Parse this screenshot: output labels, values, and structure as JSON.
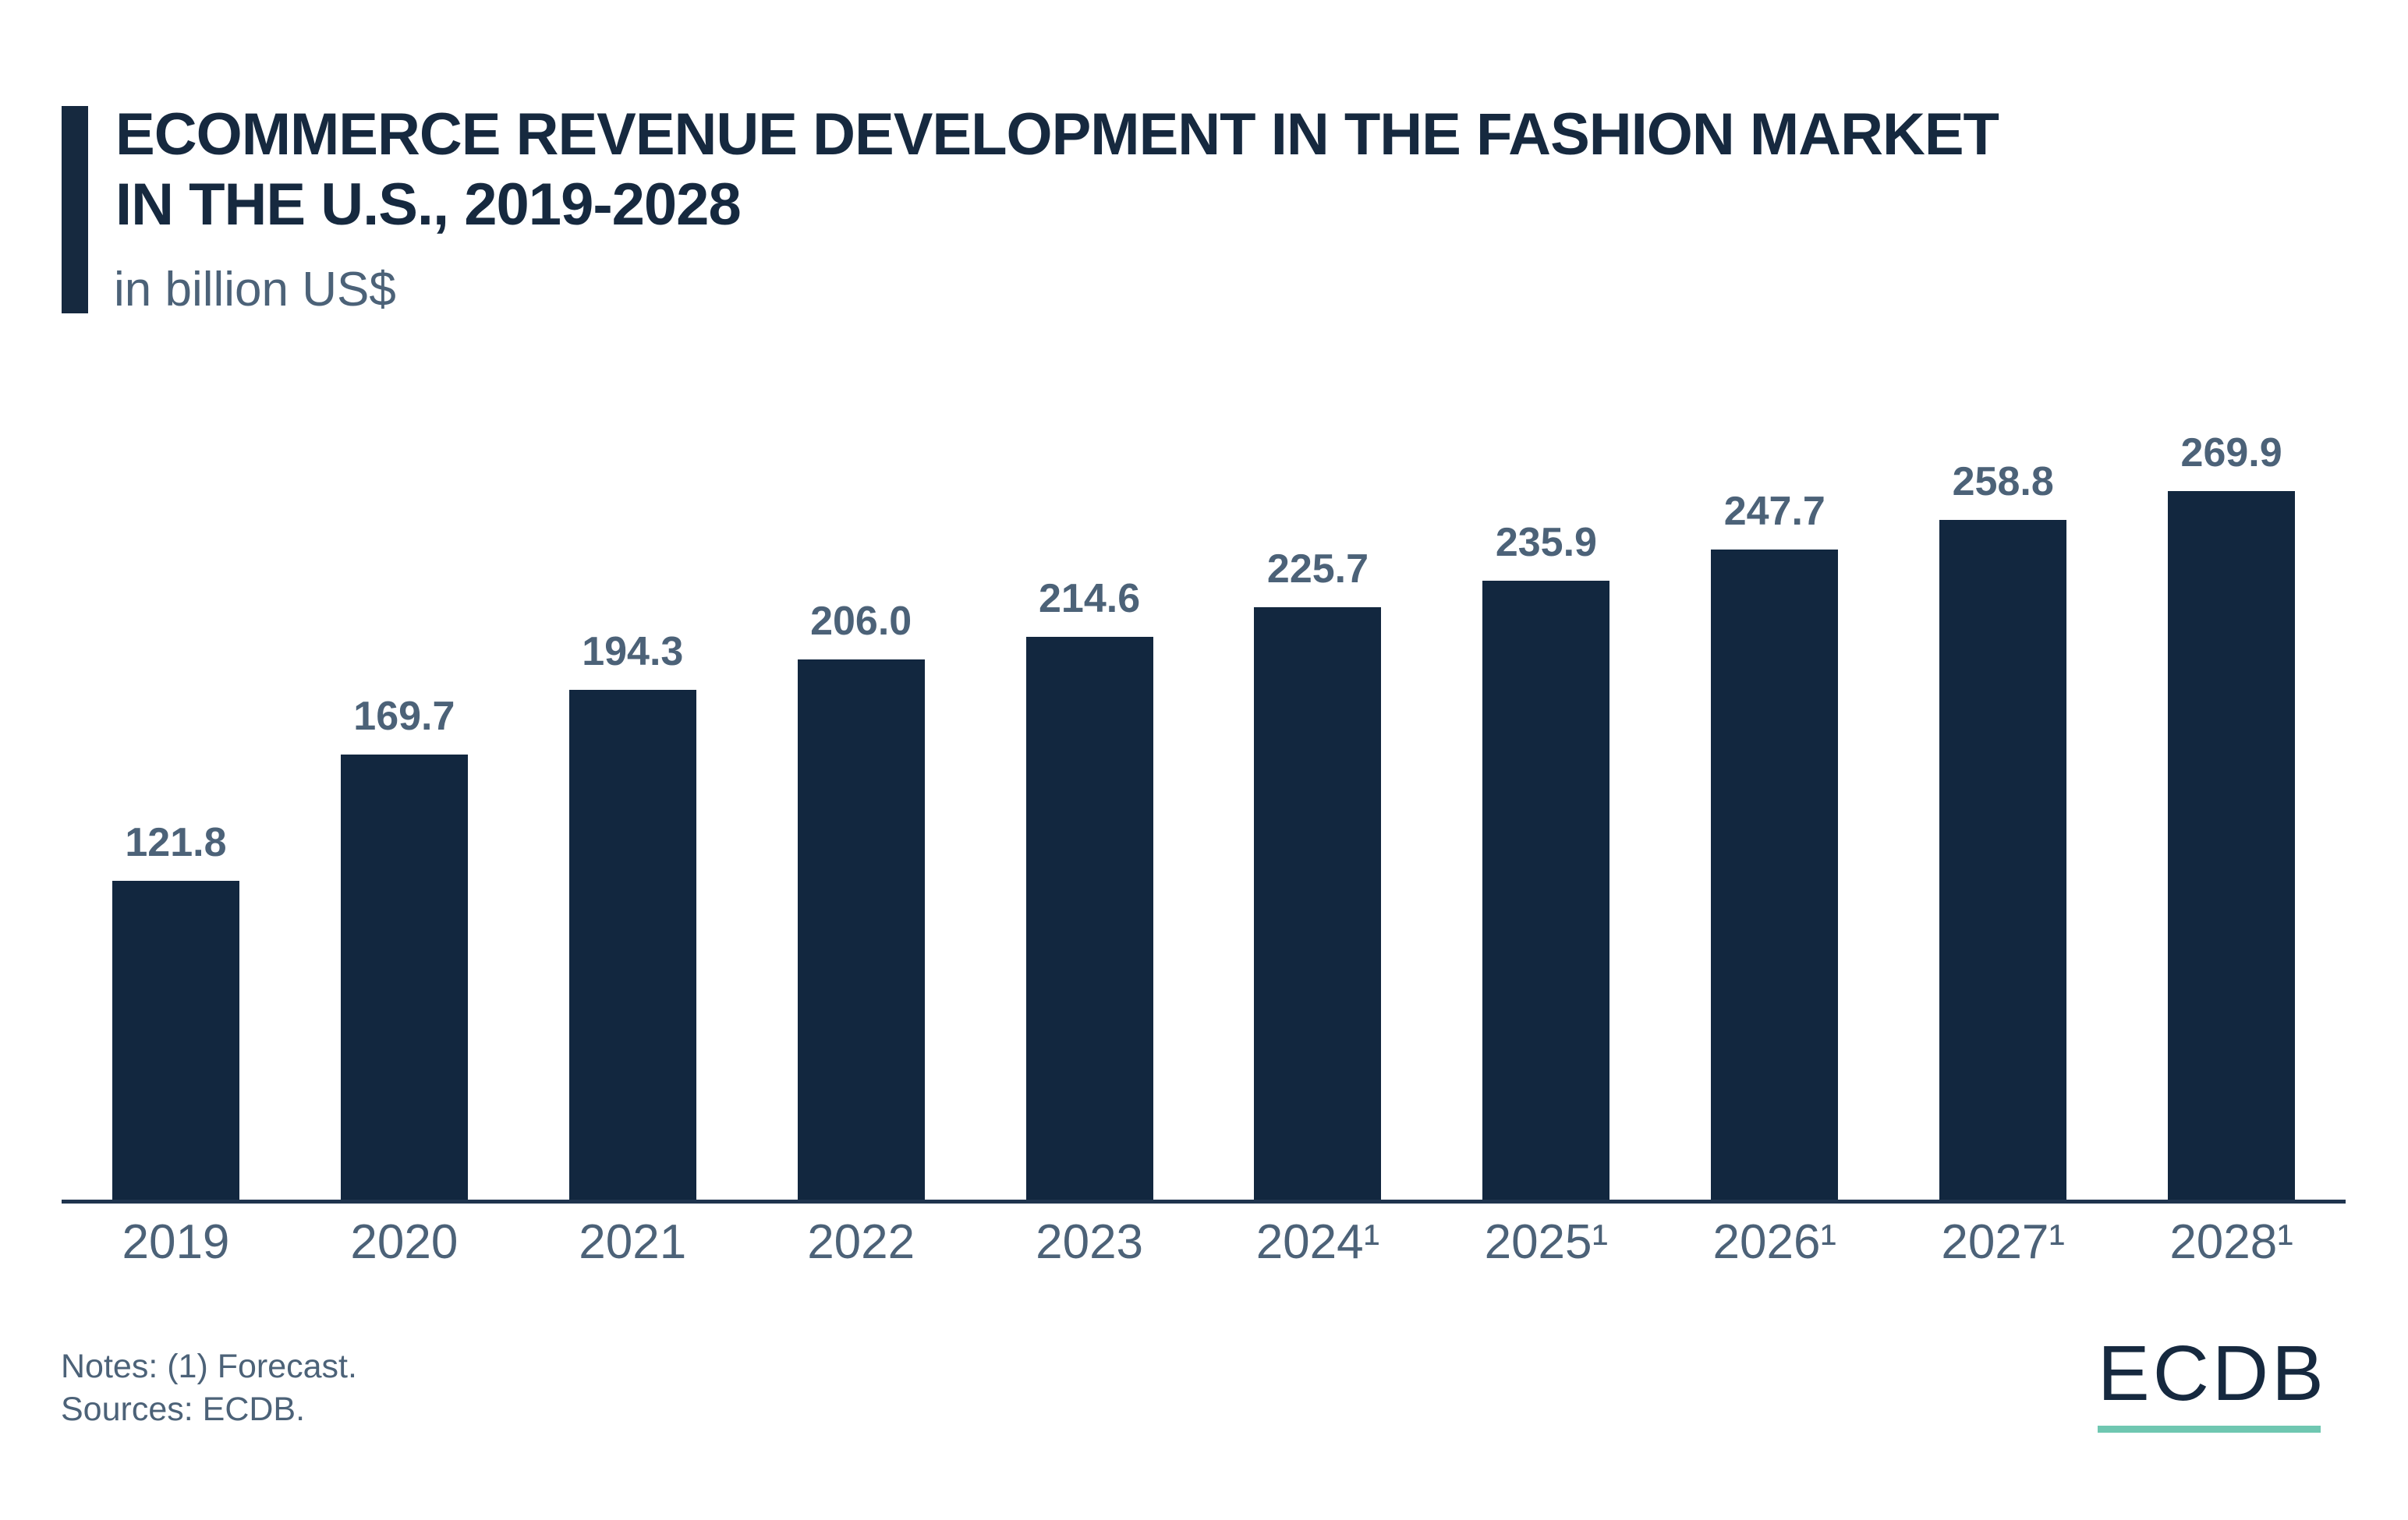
{
  "colors": {
    "navy": "#16293F",
    "bar": "#12273F",
    "muted": "#4C6278",
    "axis": "#1F344E",
    "teal": "#6FC7B1"
  },
  "header": {
    "title_line1": "ECOMMERCE REVENUE DEVELOPMENT IN THE FASHION MARKET",
    "title_line2": "IN THE U.S., 2019-2028",
    "subtitle": "in billion US$"
  },
  "chart_data": {
    "type": "bar",
    "title": "Ecommerce Revenue Development in the Fashion Market in the U.S., 2019-2028",
    "ylabel": "in billion US$",
    "xlabel": "",
    "categories": [
      "2019",
      "2020",
      "2021",
      "2022",
      "2023",
      "2024¹",
      "2025¹",
      "2026¹",
      "2027¹",
      "2028¹"
    ],
    "values": [
      121.8,
      169.7,
      194.3,
      206.0,
      214.6,
      225.7,
      235.9,
      247.7,
      258.8,
      269.9
    ],
    "value_labels": [
      "121.8",
      "169.7",
      "194.3",
      "206.0",
      "214.6",
      "225.7",
      "235.9",
      "247.7",
      "258.8",
      "269.9"
    ],
    "ylim": [
      0,
      280
    ],
    "grid": false,
    "legend": null,
    "bar_color": "#12273F",
    "label_color": "#4C6278"
  },
  "footer": {
    "notes": "Notes: (1) Forecast.",
    "sources": "Sources: ECDB.",
    "logo_text": "ECDB"
  }
}
